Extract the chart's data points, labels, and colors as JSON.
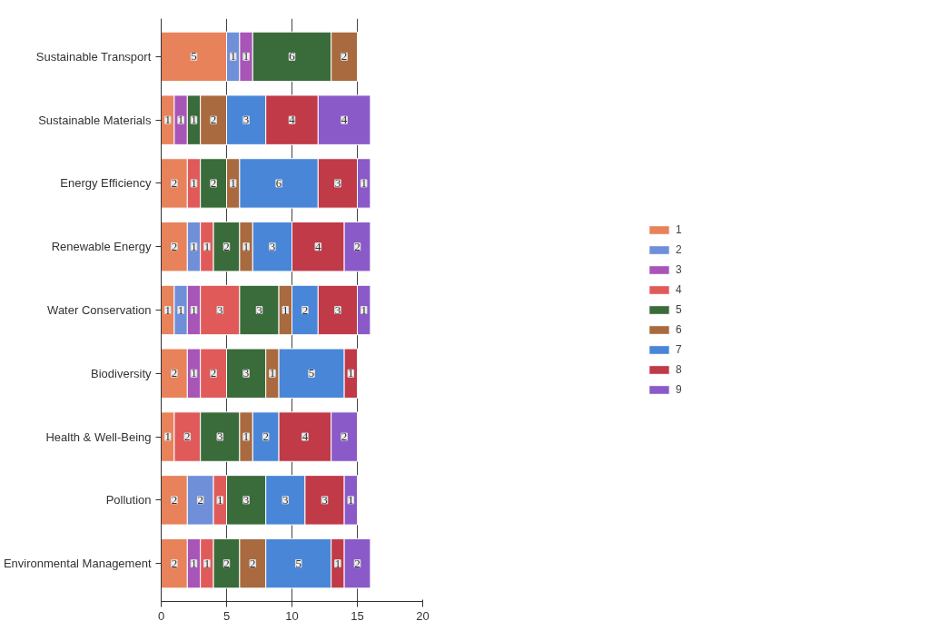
{
  "chart_data": {
    "type": "bar",
    "orientation": "horizontal",
    "stacked": true,
    "data_labels": true,
    "grid": "x",
    "legend": "right",
    "categories": [
      "Sustainable Transport",
      "Sustainable Materials",
      "Energy Efficiency",
      "Renewable Energy",
      "Water Conservation",
      "Biodiversity",
      "Health & Well-Being",
      "Pollution",
      "Environmental Management"
    ],
    "xlim": [
      0,
      20
    ],
    "xticks": [
      0,
      5,
      10,
      15,
      20
    ],
    "series": [
      {
        "name": "1",
        "color": "#e8825a",
        "values": [
          5,
          1,
          2,
          2,
          1,
          2,
          1,
          2,
          2
        ]
      },
      {
        "name": "2",
        "color": "#6f8fd8",
        "values": [
          1,
          null,
          null,
          1,
          1,
          null,
          null,
          2,
          null
        ]
      },
      {
        "name": "3",
        "color": "#a855b8",
        "values": [
          1,
          1,
          null,
          null,
          1,
          1,
          null,
          null,
          1
        ]
      },
      {
        "name": "4",
        "color": "#e05a5a",
        "values": [
          null,
          null,
          1,
          1,
          3,
          2,
          2,
          1,
          1
        ]
      },
      {
        "name": "5",
        "color": "#3a6b3a",
        "values": [
          6,
          1,
          2,
          2,
          3,
          3,
          3,
          3,
          2
        ]
      },
      {
        "name": "6",
        "color": "#a86a3e",
        "values": [
          2,
          2,
          1,
          1,
          1,
          1,
          1,
          null,
          2
        ]
      },
      {
        "name": "7",
        "color": "#4a86d8",
        "values": [
          null,
          3,
          6,
          3,
          2,
          5,
          2,
          3,
          5
        ]
      },
      {
        "name": "8",
        "color": "#c03a48",
        "values": [
          null,
          4,
          3,
          4,
          3,
          1,
          4,
          3,
          1
        ]
      },
      {
        "name": "9",
        "color": "#8a5ac8",
        "values": [
          null,
          4,
          1,
          2,
          1,
          null,
          2,
          1,
          2
        ]
      }
    ]
  }
}
